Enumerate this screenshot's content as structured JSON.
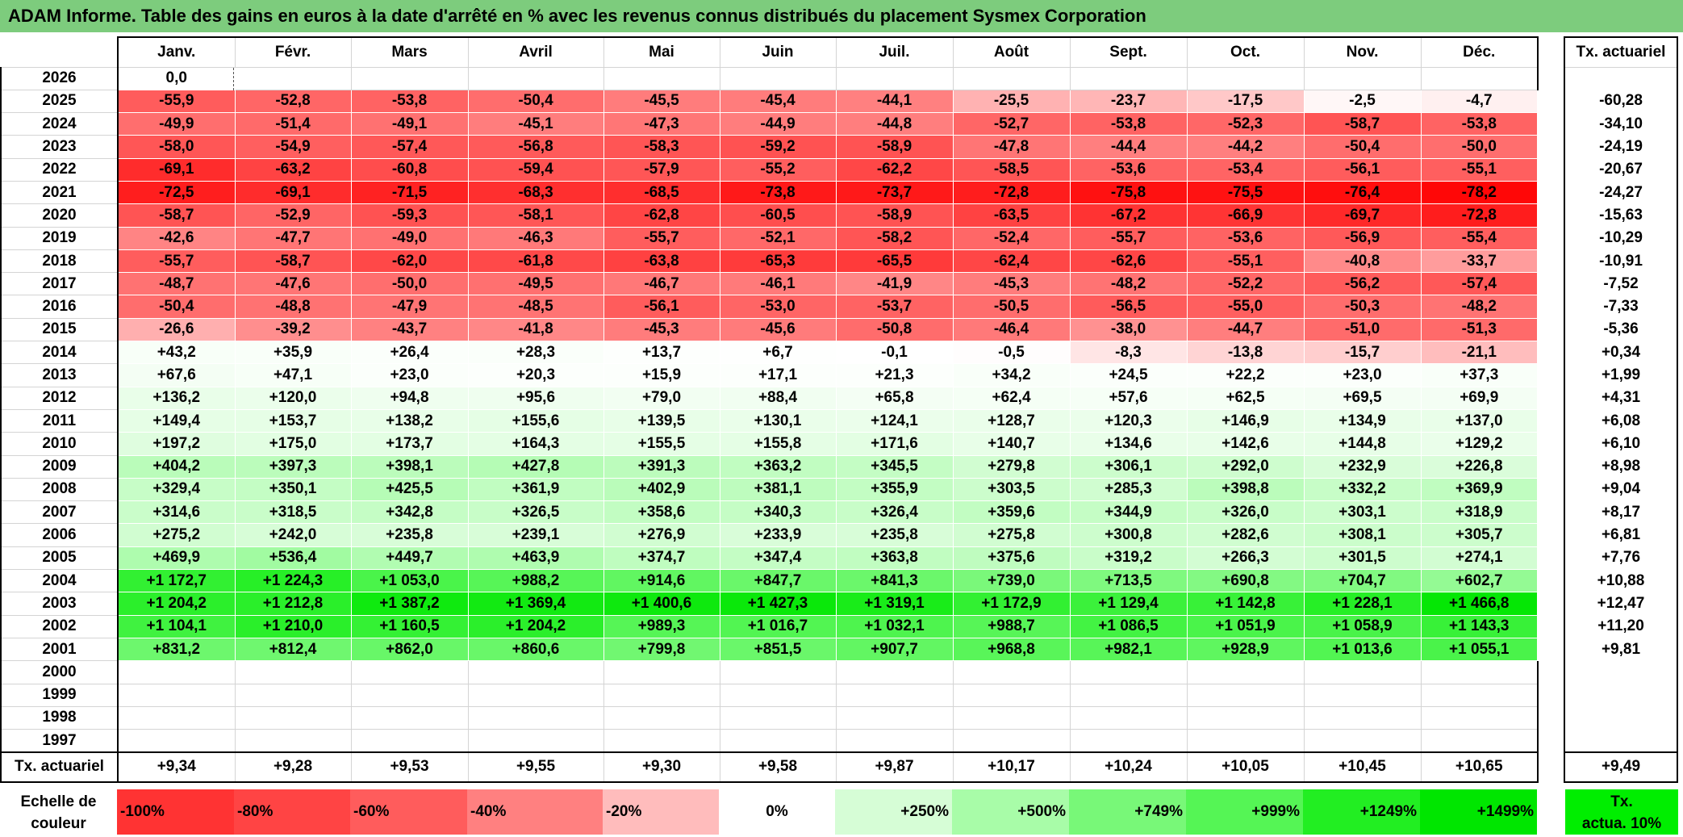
{
  "title": "ADAM Informe. Table des gains en euros à la date d'arrêté en % avec les revenus connus distribués du placement Sysmex Corporation",
  "chart_data": {
    "type": "heatmap",
    "title": "ADAM Informe. Table des gains en euros à la date d'arrêté en % avec les revenus connus distribués du placement Sysmex Corporation",
    "columns": [
      "Janv.",
      "Févr.",
      "Mars",
      "Avril",
      "Mai",
      "Juin",
      "Juil.",
      "Août",
      "Sept.",
      "Oct.",
      "Nov.",
      "Déc."
    ],
    "rate_header": "Tx. actuariel",
    "rows": [
      {
        "year": "2026",
        "values": [
          "0,0",
          "",
          "",
          "",
          "",
          "",
          "",
          "",
          "",
          "",
          "",
          ""
        ],
        "rate": ""
      },
      {
        "year": "2025",
        "values": [
          "-55,9",
          "-52,8",
          "-53,8",
          "-50,4",
          "-45,5",
          "-45,4",
          "-44,1",
          "-25,5",
          "-23,7",
          "-17,5",
          "-2,5",
          "-4,7"
        ],
        "rate": "-60,28"
      },
      {
        "year": "2024",
        "values": [
          "-49,9",
          "-51,4",
          "-49,1",
          "-45,1",
          "-47,3",
          "-44,9",
          "-44,8",
          "-52,7",
          "-53,8",
          "-52,3",
          "-58,7",
          "-53,8"
        ],
        "rate": "-34,10"
      },
      {
        "year": "2023",
        "values": [
          "-58,0",
          "-54,9",
          "-57,4",
          "-56,8",
          "-58,3",
          "-59,2",
          "-58,9",
          "-47,8",
          "-44,4",
          "-44,2",
          "-50,4",
          "-50,0"
        ],
        "rate": "-24,19"
      },
      {
        "year": "2022",
        "values": [
          "-69,1",
          "-63,2",
          "-60,8",
          "-59,4",
          "-57,9",
          "-55,2",
          "-62,2",
          "-58,5",
          "-53,6",
          "-53,4",
          "-56,1",
          "-55,1"
        ],
        "rate": "-20,67"
      },
      {
        "year": "2021",
        "values": [
          "-72,5",
          "-69,1",
          "-71,5",
          "-68,3",
          "-68,5",
          "-73,8",
          "-73,7",
          "-72,8",
          "-75,8",
          "-75,5",
          "-76,4",
          "-78,2"
        ],
        "rate": "-24,27"
      },
      {
        "year": "2020",
        "values": [
          "-58,7",
          "-52,9",
          "-59,3",
          "-58,1",
          "-62,8",
          "-60,5",
          "-58,9",
          "-63,5",
          "-67,2",
          "-66,9",
          "-69,7",
          "-72,8"
        ],
        "rate": "-15,63"
      },
      {
        "year": "2019",
        "values": [
          "-42,6",
          "-47,7",
          "-49,0",
          "-46,3",
          "-55,7",
          "-52,1",
          "-58,2",
          "-52,4",
          "-55,7",
          "-53,6",
          "-56,9",
          "-55,4"
        ],
        "rate": "-10,29"
      },
      {
        "year": "2018",
        "values": [
          "-55,7",
          "-58,7",
          "-62,0",
          "-61,8",
          "-63,8",
          "-65,3",
          "-65,5",
          "-62,4",
          "-62,6",
          "-55,1",
          "-40,8",
          "-33,7"
        ],
        "rate": "-10,91"
      },
      {
        "year": "2017",
        "values": [
          "-48,7",
          "-47,6",
          "-50,0",
          "-49,5",
          "-46,7",
          "-46,1",
          "-41,9",
          "-45,3",
          "-48,2",
          "-52,2",
          "-56,2",
          "-57,4"
        ],
        "rate": "-7,52"
      },
      {
        "year": "2016",
        "values": [
          "-50,4",
          "-48,8",
          "-47,9",
          "-48,5",
          "-56,1",
          "-53,0",
          "-53,7",
          "-50,5",
          "-56,5",
          "-55,0",
          "-50,3",
          "-48,2"
        ],
        "rate": "-7,33"
      },
      {
        "year": "2015",
        "values": [
          "-26,6",
          "-39,2",
          "-43,7",
          "-41,8",
          "-45,3",
          "-45,6",
          "-50,8",
          "-46,4",
          "-38,0",
          "-44,7",
          "-51,0",
          "-51,3"
        ],
        "rate": "-5,36"
      },
      {
        "year": "2014",
        "values": [
          "+43,2",
          "+35,9",
          "+26,4",
          "+28,3",
          "+13,7",
          "+6,7",
          "-0,1",
          "-0,5",
          "-8,3",
          "-13,8",
          "-15,7",
          "-21,1"
        ],
        "rate": "+0,34"
      },
      {
        "year": "2013",
        "values": [
          "+67,6",
          "+47,1",
          "+23,0",
          "+20,3",
          "+15,9",
          "+17,1",
          "+21,3",
          "+34,2",
          "+24,5",
          "+22,2",
          "+23,0",
          "+37,3"
        ],
        "rate": "+1,99"
      },
      {
        "year": "2012",
        "values": [
          "+136,2",
          "+120,0",
          "+94,8",
          "+95,6",
          "+79,0",
          "+88,4",
          "+65,8",
          "+62,4",
          "+57,6",
          "+62,5",
          "+69,5",
          "+69,9"
        ],
        "rate": "+4,31"
      },
      {
        "year": "2011",
        "values": [
          "+149,4",
          "+153,7",
          "+138,2",
          "+155,6",
          "+139,5",
          "+130,1",
          "+124,1",
          "+128,7",
          "+120,3",
          "+146,9",
          "+134,9",
          "+137,0"
        ],
        "rate": "+6,08"
      },
      {
        "year": "2010",
        "values": [
          "+197,2",
          "+175,0",
          "+173,7",
          "+164,3",
          "+155,5",
          "+155,8",
          "+171,6",
          "+140,7",
          "+134,6",
          "+142,6",
          "+144,8",
          "+129,2"
        ],
        "rate": "+6,10"
      },
      {
        "year": "2009",
        "values": [
          "+404,2",
          "+397,3",
          "+398,1",
          "+427,8",
          "+391,3",
          "+363,2",
          "+345,5",
          "+279,8",
          "+306,1",
          "+292,0",
          "+232,9",
          "+226,8"
        ],
        "rate": "+8,98"
      },
      {
        "year": "2008",
        "values": [
          "+329,4",
          "+350,1",
          "+425,5",
          "+361,9",
          "+402,9",
          "+381,1",
          "+355,9",
          "+303,5",
          "+285,3",
          "+398,8",
          "+332,2",
          "+369,9"
        ],
        "rate": "+9,04"
      },
      {
        "year": "2007",
        "values": [
          "+314,6",
          "+318,5",
          "+342,8",
          "+326,5",
          "+358,6",
          "+340,3",
          "+326,4",
          "+359,6",
          "+344,9",
          "+326,0",
          "+303,1",
          "+318,9"
        ],
        "rate": "+8,17"
      },
      {
        "year": "2006",
        "values": [
          "+275,2",
          "+242,0",
          "+235,8",
          "+239,1",
          "+276,9",
          "+233,9",
          "+235,8",
          "+275,8",
          "+300,8",
          "+282,6",
          "+308,1",
          "+305,7"
        ],
        "rate": "+6,81"
      },
      {
        "year": "2005",
        "values": [
          "+469,9",
          "+536,4",
          "+449,7",
          "+463,9",
          "+374,7",
          "+347,4",
          "+363,8",
          "+375,6",
          "+319,2",
          "+266,3",
          "+301,5",
          "+274,1"
        ],
        "rate": "+7,76"
      },
      {
        "year": "2004",
        "values": [
          "+1 172,7",
          "+1 224,3",
          "+1 053,0",
          "+988,2",
          "+914,6",
          "+847,7",
          "+841,3",
          "+739,0",
          "+713,5",
          "+690,8",
          "+704,7",
          "+602,7"
        ],
        "rate": "+10,88"
      },
      {
        "year": "2003",
        "values": [
          "+1 204,2",
          "+1 212,8",
          "+1 387,2",
          "+1 369,4",
          "+1 400,6",
          "+1 427,3",
          "+1 319,1",
          "+1 172,9",
          "+1 129,4",
          "+1 142,8",
          "+1 228,1",
          "+1 466,8"
        ],
        "rate": "+12,47"
      },
      {
        "year": "2002",
        "values": [
          "+1 104,1",
          "+1 210,0",
          "+1 160,5",
          "+1 204,2",
          "+989,3",
          "+1 016,7",
          "+1 032,1",
          "+988,7",
          "+1 086,5",
          "+1 051,9",
          "+1 058,9",
          "+1 143,3"
        ],
        "rate": "+11,20"
      },
      {
        "year": "2001",
        "values": [
          "+831,2",
          "+812,4",
          "+862,0",
          "+860,6",
          "+799,8",
          "+851,5",
          "+907,7",
          "+968,8",
          "+982,1",
          "+928,9",
          "+1 013,6",
          "+1 055,1"
        ],
        "rate": "+9,81"
      },
      {
        "year": "2000",
        "values": [
          "",
          "",
          "",
          "",
          "",
          "",
          "",
          "",
          "",
          "",
          "",
          ""
        ],
        "rate": ""
      },
      {
        "year": "1999",
        "values": [
          "",
          "",
          "",
          "",
          "",
          "",
          "",
          "",
          "",
          "",
          "",
          ""
        ],
        "rate": ""
      },
      {
        "year": "1998",
        "values": [
          "",
          "",
          "",
          "",
          "",
          "",
          "",
          "",
          "",
          "",
          "",
          ""
        ],
        "rate": ""
      },
      {
        "year": "1997",
        "values": [
          "",
          "",
          "",
          "",
          "",
          "",
          "",
          "",
          "",
          "",
          "",
          ""
        ],
        "rate": ""
      }
    ],
    "footer": {
      "label": "Tx. actuariel",
      "values": [
        "+9,34",
        "+9,28",
        "+9,53",
        "+9,55",
        "+9,30",
        "+9,58",
        "+9,87",
        "+10,17",
        "+10,24",
        "+10,05",
        "+10,45",
        "+10,65"
      ],
      "rate": "+9,49"
    },
    "color_scale": {
      "label_line1": "Echelle de",
      "label_line2": "couleur",
      "steps": [
        {
          "label": "-100%",
          "color": "#ff3333",
          "align": "left"
        },
        {
          "label": "-80%",
          "color": "#ff4444",
          "align": "left"
        },
        {
          "label": "-60%",
          "color": "#ff5c5c",
          "align": "left"
        },
        {
          "label": "-40%",
          "color": "#ff8080",
          "align": "left"
        },
        {
          "label": "-20%",
          "color": "#ffbcbc",
          "align": "left"
        },
        {
          "label": "0%",
          "color": "#ffffff",
          "align": "center"
        },
        {
          "label": "+250%",
          "color": "#d6fdd6",
          "align": "right"
        },
        {
          "label": "+500%",
          "color": "#a8fca8",
          "align": "right"
        },
        {
          "label": "+749%",
          "color": "#78f878",
          "align": "right"
        },
        {
          "label": "+999%",
          "color": "#55f555",
          "align": "right"
        },
        {
          "label": "+1249%",
          "color": "#22ee22",
          "align": "right"
        },
        {
          "label": "+1499%",
          "color": "#00e600",
          "align": "right"
        }
      ],
      "rate_line1": "Tx.",
      "rate_line2": "actua. 10%",
      "rate_color": "#00ee00"
    }
  }
}
